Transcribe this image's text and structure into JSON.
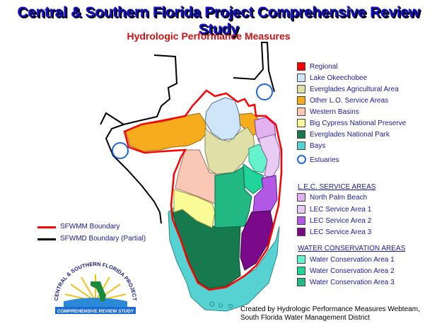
{
  "title": "Central & Southern Florida Project Comprehensive Review Study",
  "subtitle": "Hydrologic Performance Measures",
  "legend": {
    "items": [
      {
        "label": "Regional",
        "color": "#ff0000"
      },
      {
        "label": "Lake Okeechobee",
        "color": "#cfe6fa"
      },
      {
        "label": "Everglades Agricultural Area",
        "color": "#e0dfa8"
      },
      {
        "label": "Other L.O. Service Areas",
        "color": "#f6ac1c"
      },
      {
        "label": "Western Basins",
        "color": "#fac8b4"
      },
      {
        "label": "Big Cypress National Preserve",
        "color": "#fafa96"
      },
      {
        "label": "Everglades National Park",
        "color": "#167a4e"
      },
      {
        "label": "Bays",
        "color": "#56d2d2"
      }
    ],
    "estuaries_label": "Estuaries",
    "lec_header": "L.E.C. SERVICE AREAS",
    "lec_items": [
      {
        "label": "North Palm Beach",
        "color": "#e2b2f0"
      },
      {
        "label": "LEC Service Area 1",
        "color": "#e8ccf4"
      },
      {
        "label": "LEC Service Area 2",
        "color": "#b25ae6"
      },
      {
        "label": "LEC Service Area 3",
        "color": "#7a0a8a"
      }
    ],
    "wca_header": "WATER CONSERVATION AREAS",
    "wca_items": [
      {
        "label": "Water Conservation Area 1",
        "color": "#66f2cc"
      },
      {
        "label": "Water Conservation Area 2",
        "color": "#20d49a"
      },
      {
        "label": "Water Conservation Area 3",
        "color": "#22b884"
      }
    ]
  },
  "boundaries": {
    "sfwmm_label": "SFWMM Boundary",
    "sfwmd_label": "SFWMD Boundary (Partial)",
    "sfwmm_color": "#ff0000",
    "sfwmd_color": "#000000"
  },
  "logo": {
    "top_text": "CENTRAL & SOUTHERN FLORIDA PROJECT",
    "bottom_text": "COMPREHENSIVE REVIEW STUDY"
  },
  "credit": {
    "line1": "Created by Hydrologic Performance Measures Webteam,",
    "line2": "South Florida Water Management District"
  }
}
